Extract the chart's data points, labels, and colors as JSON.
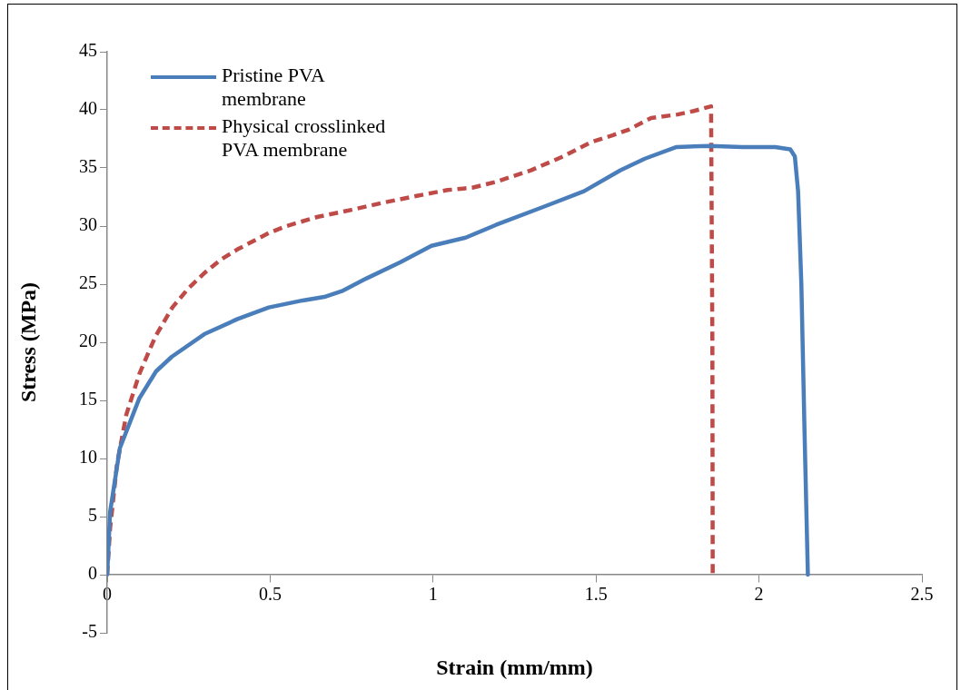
{
  "chart_data": {
    "type": "line",
    "xlabel": "Strain (mm/mm)",
    "ylabel": "Stress (MPa)",
    "xlim": [
      0,
      2.5
    ],
    "xticks": [
      0,
      0.5,
      1,
      1.5,
      2,
      2.5
    ],
    "ylim": [
      -5,
      45
    ],
    "yticks": [
      -5,
      0,
      5,
      10,
      15,
      20,
      25,
      30,
      35,
      40,
      45
    ],
    "grid": false,
    "legend": "top left",
    "marker": "none",
    "series": [
      {
        "name": "Pristine PVA membrane",
        "color": "#4a7ebb",
        "line_style": "solid",
        "x": [
          0,
          0.009,
          0.039,
          0.099,
          0.15,
          0.198,
          0.298,
          0.4,
          0.496,
          0.6,
          0.666,
          0.72,
          0.796,
          0.9,
          0.995,
          1.1,
          1.193,
          1.343,
          1.463,
          1.575,
          1.65,
          1.747,
          1.85,
          1.95,
          2.05,
          2.096,
          2.11,
          2.12,
          2.13,
          2.14,
          2.15
        ],
        "values": [
          0,
          5.4,
          10.9,
          15.2,
          17.5,
          18.75,
          20.7,
          22,
          23,
          23.6,
          23.9,
          24.4,
          25.5,
          26.9,
          28.3,
          29,
          30.1,
          31.7,
          33,
          34.8,
          35.8,
          36.8,
          36.9,
          36.8,
          36.8,
          36.6,
          36,
          33,
          25,
          12,
          0
        ]
      },
      {
        "name": "Physical crosslinked PVA membrane",
        "color": "#be4b48",
        "line_style": "dashed",
        "x": [
          0,
          0.009,
          0.03,
          0.059,
          0.099,
          0.148,
          0.2,
          0.248,
          0.3,
          0.348,
          0.4,
          0.496,
          0.55,
          0.647,
          0.75,
          0.845,
          0.95,
          1.045,
          1.12,
          1.193,
          1.3,
          1.4,
          1.483,
          1.55,
          1.6,
          1.669,
          1.75,
          1.8,
          1.853,
          1.857,
          1.858
        ],
        "values": [
          0,
          4,
          9.5,
          13.8,
          17.3,
          20.5,
          23,
          24.6,
          26,
          27.1,
          28,
          29.4,
          30,
          30.8,
          31.4,
          32,
          32.6,
          33.1,
          33.3,
          33.8,
          34.8,
          36,
          37.2,
          37.8,
          38.3,
          39.3,
          39.6,
          39.9,
          40.3,
          20,
          0
        ]
      }
    ]
  }
}
